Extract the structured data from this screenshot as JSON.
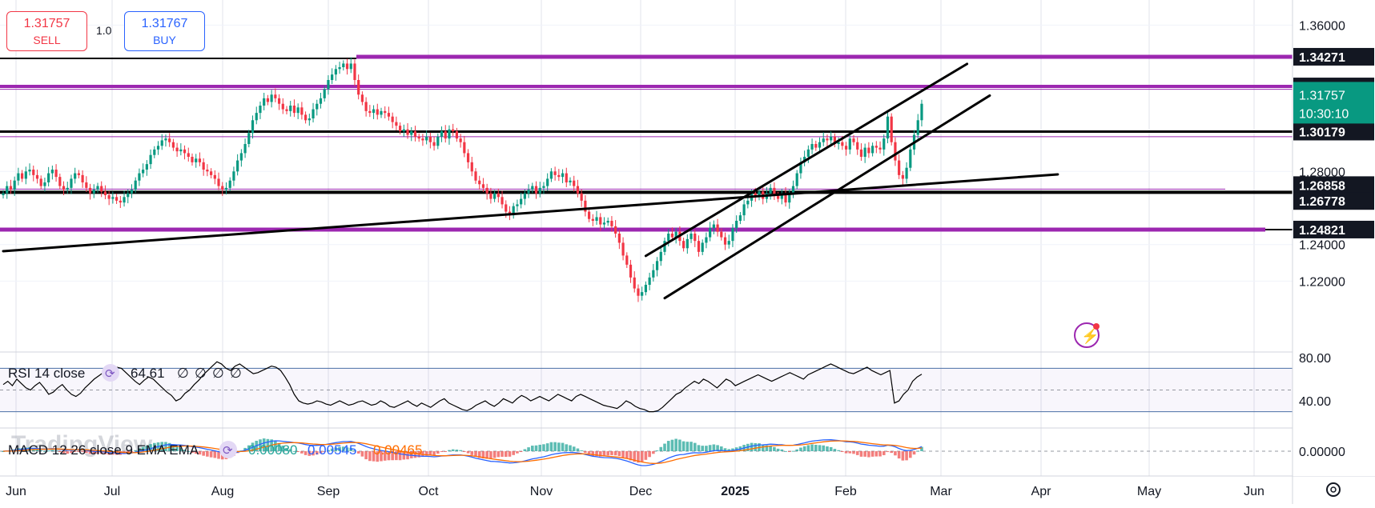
{
  "trade_panel": {
    "sell_price": "1.31757",
    "sell_label": "SELL",
    "quantity": "1.0",
    "buy_price": "1.31767",
    "buy_label": "BUY"
  },
  "price_axis": {
    "ticks": [
      "1.36000",
      "1.28000",
      "1.24000",
      "1.22000"
    ],
    "current_price": "1.31757",
    "countdown": "10:30:10",
    "level_labels": [
      {
        "text": "1.34271",
        "value": 1.34271,
        "style": "dark"
      },
      {
        "text": "1.32648",
        "value": 1.32648,
        "style": "dark"
      },
      {
        "text": "1.30179",
        "value": 1.30179,
        "style": "dark"
      },
      {
        "text": "1.26858",
        "value": 1.26858,
        "style": "dark"
      },
      {
        "text": "1.26778",
        "value": 1.26778,
        "style": "dark"
      },
      {
        "text": "1.24821",
        "value": 1.24821,
        "style": "dark"
      }
    ]
  },
  "time_axis": {
    "labels": [
      "Jun",
      "Jul",
      "Aug",
      "Sep",
      "Oct",
      "Nov",
      "Dec",
      "2025",
      "Feb",
      "Mar",
      "Apr",
      "May",
      "Jun"
    ],
    "settings_icon": "gear-icon"
  },
  "rsi": {
    "title": "RSI 14 close",
    "value": "64.61",
    "extras": [
      "∅",
      "∅",
      "∅",
      "∅"
    ],
    "ticks": [
      "80.00",
      "40.00"
    ],
    "upper": 70,
    "lower": 30,
    "mid": 50
  },
  "macd": {
    "title": "MACD 12 26 close 9 EMA EMA",
    "hist_value": "0.00080",
    "macd_value": "0.00545",
    "signal_value": "0.00465",
    "tick": "0.00000"
  },
  "watermark": "TradingView",
  "colors": {
    "up": "#089981",
    "down": "#f23645",
    "level_purple": "#9c27b0",
    "trendline": "#000000",
    "current_price_bg": "#089981",
    "macd_line": "#2962ff",
    "signal_line": "#ff6d00",
    "rsi_line": "#000000"
  },
  "chart_data": {
    "type": "candlestick",
    "symbol_price_unit": "USD",
    "ylim": [
      1.19,
      1.365
    ],
    "levels": [
      1.34271,
      1.32648,
      1.30179,
      1.26858,
      1.26778,
      1.24821
    ],
    "closes": [
      1.268,
      1.272,
      1.27,
      1.275,
      1.279,
      1.276,
      1.28,
      1.281,
      1.278,
      1.276,
      1.272,
      1.274,
      1.279,
      1.281,
      1.277,
      1.272,
      1.27,
      1.271,
      1.276,
      1.279,
      1.278,
      1.274,
      1.271,
      1.268,
      1.27,
      1.272,
      1.269,
      1.267,
      1.265,
      1.266,
      1.264,
      1.263,
      1.266,
      1.268,
      1.27,
      1.275,
      1.279,
      1.281,
      1.284,
      1.289,
      1.292,
      1.294,
      1.297,
      1.298,
      1.296,
      1.293,
      1.291,
      1.292,
      1.29,
      1.288,
      1.285,
      1.287,
      1.285,
      1.281,
      1.28,
      1.278,
      1.276,
      1.272,
      1.27,
      1.271,
      1.275,
      1.28,
      1.286,
      1.29,
      1.295,
      1.301,
      1.308,
      1.312,
      1.316,
      1.32,
      1.318,
      1.322,
      1.32,
      1.317,
      1.314,
      1.313,
      1.316,
      1.312,
      1.315,
      1.311,
      1.308,
      1.309,
      1.314,
      1.317,
      1.32,
      1.325,
      1.33,
      1.333,
      1.336,
      1.337,
      1.339,
      1.336,
      1.339,
      1.33,
      1.322,
      1.318,
      1.313,
      1.312,
      1.314,
      1.311,
      1.313,
      1.312,
      1.31,
      1.307,
      1.305,
      1.302,
      1.303,
      1.3,
      1.302,
      1.299,
      1.298,
      1.297,
      1.299,
      1.296,
      1.294,
      1.299,
      1.302,
      1.298,
      1.303,
      1.302,
      1.298,
      1.296,
      1.29,
      1.285,
      1.28,
      1.275,
      1.273,
      1.271,
      1.268,
      1.265,
      1.268,
      1.266,
      1.262,
      1.258,
      1.256,
      1.261,
      1.262,
      1.265,
      1.268,
      1.27,
      1.272,
      1.268,
      1.271,
      1.272,
      1.276,
      1.28,
      1.278,
      1.277,
      1.279,
      1.274,
      1.275,
      1.272,
      1.268,
      1.264,
      1.258,
      1.254,
      1.253,
      1.255,
      1.251,
      1.252,
      1.253,
      1.25,
      1.246,
      1.241,
      1.234,
      1.229,
      1.222,
      1.216,
      1.212,
      1.214,
      1.218,
      1.222,
      1.226,
      1.231,
      1.236,
      1.242,
      1.246,
      1.244,
      1.247,
      1.242,
      1.238,
      1.243,
      1.246,
      1.242,
      1.236,
      1.241,
      1.244,
      1.249,
      1.251,
      1.247,
      1.244,
      1.24,
      1.242,
      1.249,
      1.253,
      1.256,
      1.262,
      1.264,
      1.268,
      1.266,
      1.269,
      1.265,
      1.268,
      1.271,
      1.267,
      1.265,
      1.268,
      1.263,
      1.268,
      1.272,
      1.279,
      1.285,
      1.288,
      1.292,
      1.295,
      1.293,
      1.296,
      1.298,
      1.297,
      1.299,
      1.295,
      1.296,
      1.294,
      1.292,
      1.298,
      1.296,
      1.292,
      1.288,
      1.293,
      1.29,
      1.294,
      1.293,
      1.292,
      1.298,
      1.31,
      1.296,
      1.286,
      1.278,
      1.276,
      1.282,
      1.292,
      1.3,
      1.308,
      1.317
    ],
    "trendlines": [
      {
        "from": [
          0,
          1.2364
        ],
        "to": [
          279,
          1.2784
        ]
      },
      {
        "from": [
          170,
          1.2338
        ],
        "to": [
          255,
          1.3388
        ]
      },
      {
        "from": [
          175,
          1.2107
        ],
        "to": [
          261,
          1.3215
        ]
      }
    ],
    "rsi_values": [
      55,
      58,
      54,
      60,
      56,
      52,
      50,
      54,
      57,
      52,
      46,
      48,
      52,
      55,
      50,
      46,
      44,
      47,
      52,
      56,
      60,
      63,
      66,
      64,
      68,
      71,
      70,
      66,
      62,
      58,
      55,
      59,
      62,
      60,
      56,
      52,
      48,
      45,
      40,
      42,
      47,
      50,
      55,
      59,
      64,
      68,
      72,
      76,
      74,
      70,
      68,
      72,
      74,
      71,
      68,
      65,
      66,
      68,
      70,
      72,
      71,
      68,
      62,
      55,
      46,
      40,
      38,
      37,
      38,
      40,
      39,
      37,
      36,
      38,
      40,
      38,
      36,
      37,
      39,
      40,
      38,
      36,
      37,
      40,
      38,
      35,
      34,
      36,
      38,
      40,
      37,
      35,
      38,
      36,
      34,
      37,
      40,
      42,
      38,
      36,
      34,
      32,
      31,
      33,
      36,
      38,
      40,
      37,
      35,
      38,
      42,
      40,
      38,
      42,
      45,
      43,
      40,
      42,
      44,
      42,
      40,
      43,
      46,
      44,
      42,
      40,
      44,
      46,
      44,
      42,
      40,
      38,
      36,
      35,
      34,
      33,
      36,
      40,
      38,
      35,
      33,
      32,
      30,
      30,
      31,
      34,
      38,
      42,
      46,
      48,
      52,
      55,
      58,
      56,
      60,
      58,
      55,
      52,
      56,
      60,
      58,
      54,
      56,
      58,
      60,
      62,
      64,
      62,
      60,
      58,
      60,
      62,
      64,
      66,
      64,
      62,
      60,
      64,
      66,
      68,
      70,
      72,
      74,
      72,
      70,
      68,
      66,
      65,
      67,
      69,
      71,
      68,
      66,
      64,
      66,
      68,
      38,
      40,
      46,
      50,
      58,
      62,
      64.61
    ]
  }
}
